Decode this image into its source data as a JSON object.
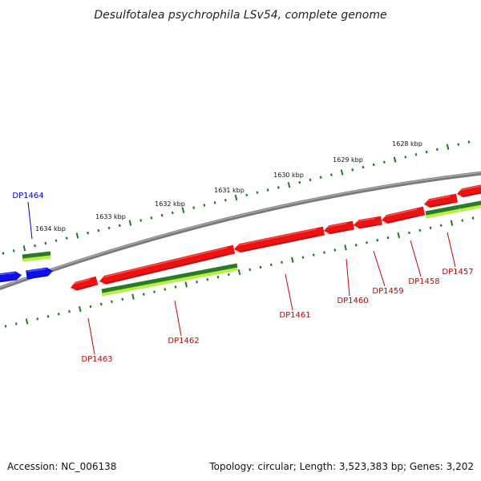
{
  "title": "Desulfotalea psychrophila LSv54, complete genome",
  "footer": {
    "accession": "Accession: NC_006138",
    "summary": "Topology: circular; Length: 3,523,383 bp; Genes: 3,202"
  },
  "colors": {
    "backbone": "#8a8a8a",
    "tick": "#1f7a1f",
    "gene_red": "#ee1111",
    "gene_red_label": "#cc0000",
    "gene_blue": "#1010ee",
    "gene_blue_label": "#0000cc",
    "cds_dark": "#2a7a2a",
    "cds_light": "#b8f040"
  },
  "scale_labels": [
    "1628 kbp",
    "1629 kbp",
    "1630 kbp",
    "1631 kbp",
    "1632 kbp",
    "1633 kbp",
    "1634 kbp"
  ],
  "genes": [
    {
      "name": "DP1457",
      "strand": "red"
    },
    {
      "name": "DP1458",
      "strand": "red"
    },
    {
      "name": "DP1459",
      "strand": "red"
    },
    {
      "name": "DP1460",
      "strand": "red"
    },
    {
      "name": "DP1461",
      "strand": "red"
    },
    {
      "name": "DP1462",
      "strand": "red"
    },
    {
      "name": "DP1463",
      "strand": "red"
    },
    {
      "name": "DP1464",
      "strand": "blue"
    }
  ]
}
